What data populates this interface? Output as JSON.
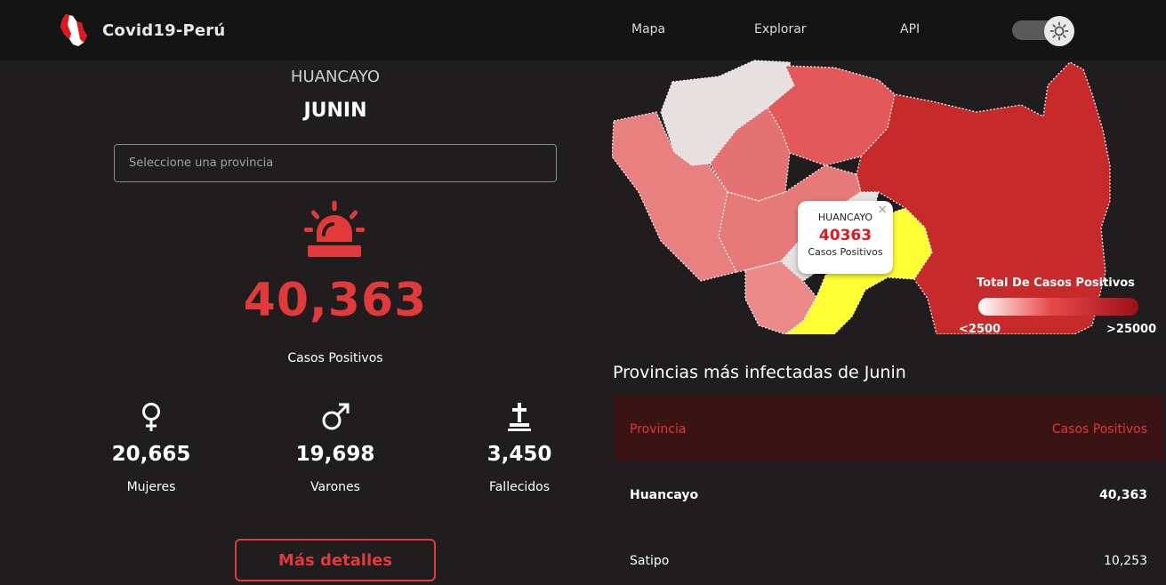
{
  "nav": {
    "brand": "Covid19-Perú",
    "links": [
      "Mapa",
      "Explorar",
      "API"
    ],
    "theme_toggle_icon": "sun-icon",
    "logo_icon": "peru-map-logo-icon"
  },
  "summary": {
    "province": "HUANCAYO",
    "department": "JUNIN",
    "search_placeholder": "Seleccione una provincia",
    "alert_icon": "siren-icon",
    "total_cases": "40,363",
    "total_label": "Casos Positivos",
    "stats": [
      {
        "icon": "female-icon",
        "value": "20,665",
        "label": "Mujeres"
      },
      {
        "icon": "male-icon",
        "value": "19,698",
        "label": "Varones"
      },
      {
        "icon": "cross-grave-icon",
        "value": "3,450",
        "label": "Fallecidos"
      }
    ],
    "details_button": "Más detalles"
  },
  "map": {
    "popup": {
      "title": "HUANCAYO",
      "value": "40363",
      "label": "Casos Positivos",
      "close": "×"
    },
    "legend": {
      "title": "Total De Casos Positivos",
      "min": "<2500",
      "max": ">25000"
    },
    "colors": {
      "highlight": "#ffff33",
      "low": "#e8e2e2",
      "high": "#c72a2a"
    }
  },
  "table": {
    "title": "Provincias más infectadas de Junin",
    "headers": [
      "Provincia",
      "Casos Positivos"
    ],
    "rows": [
      {
        "name": "Huancayo",
        "cases": "40,363"
      },
      {
        "name": "Satipo",
        "cases": "10,253"
      }
    ]
  },
  "colors": {
    "accent": "#e23a3a",
    "background": "#1f1d1d",
    "nav": "#141414"
  }
}
